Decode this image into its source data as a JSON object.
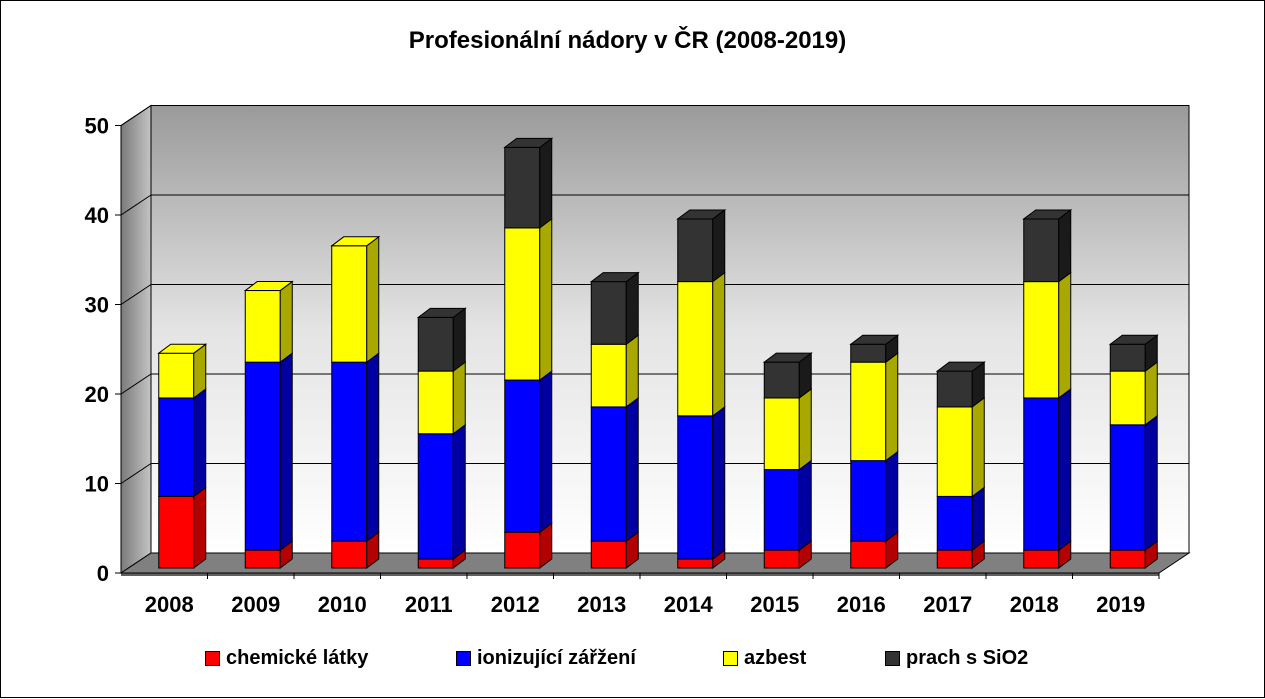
{
  "chart_data": {
    "type": "bar",
    "stacked": true,
    "title": "Profesionální nádory v ČR (2008-2019)",
    "categories": [
      "2008",
      "2009",
      "2010",
      "2011",
      "2012",
      "2013",
      "2014",
      "2015",
      "2016",
      "2017",
      "2018",
      "2019"
    ],
    "ylim": [
      0,
      50
    ],
    "yticks": [
      "0",
      "10",
      "20",
      "30",
      "40",
      "50"
    ],
    "grid": true,
    "legend_position": "bottom",
    "series": [
      {
        "name": "chemické látky",
        "color": "#ff0000",
        "side": "#b30000",
        "values": [
          8,
          2,
          3,
          1,
          4,
          3,
          1,
          2,
          3,
          2,
          2,
          2
        ]
      },
      {
        "name": "ionizující zářžení",
        "color": "#0000ff",
        "side": "#0000a0",
        "values": [
          11,
          21,
          20,
          14,
          17,
          15,
          16,
          9,
          9,
          6,
          17,
          14
        ]
      },
      {
        "name": "azbest",
        "color": "#ffff00",
        "side": "#a8a800",
        "values": [
          5,
          8,
          13,
          7,
          17,
          7,
          15,
          8,
          11,
          10,
          13,
          6
        ]
      },
      {
        "name": "prach s SiO2",
        "color": "#333333",
        "side": "#1a1a1a",
        "values": [
          0,
          0,
          0,
          6,
          9,
          7,
          7,
          4,
          2,
          4,
          7,
          3
        ]
      }
    ]
  }
}
